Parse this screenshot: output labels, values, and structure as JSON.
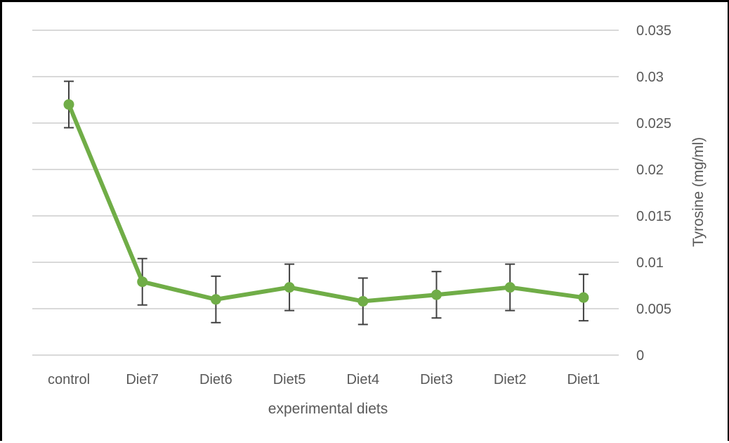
{
  "chart_data": {
    "type": "line",
    "title": "",
    "xlabel": "experimental diets",
    "ylabel": "Tyrosine (mg/ml)",
    "y_axis_position": "right",
    "ylim": [
      0,
      0.035
    ],
    "y_ticks": [
      0,
      0.005,
      0.01,
      0.015,
      0.02,
      0.025,
      0.03,
      0.035
    ],
    "y_tick_labels": [
      "0",
      "0.005",
      "0.01",
      "0.015",
      "0.02",
      "0.025",
      "0.03",
      "0.035"
    ],
    "grid": true,
    "legend": "none",
    "categories": [
      "control",
      "Diet7",
      "Diet6",
      "Diet5",
      "Diet4",
      "Diet3",
      "Diet2",
      "Diet1"
    ],
    "series": [
      {
        "values": [
          0.027,
          0.0079,
          0.006,
          0.0073,
          0.0058,
          0.0065,
          0.0073,
          0.0062
        ],
        "error": [
          0.0025,
          0.0025,
          0.0025,
          0.0025,
          0.0025,
          0.0025,
          0.0025,
          0.0025
        ],
        "color": "#70AD47"
      }
    ],
    "colors": {
      "line": "#70AD47",
      "grid": "#D9D9D9",
      "error_bar": "#404040",
      "text": "#595959"
    }
  }
}
